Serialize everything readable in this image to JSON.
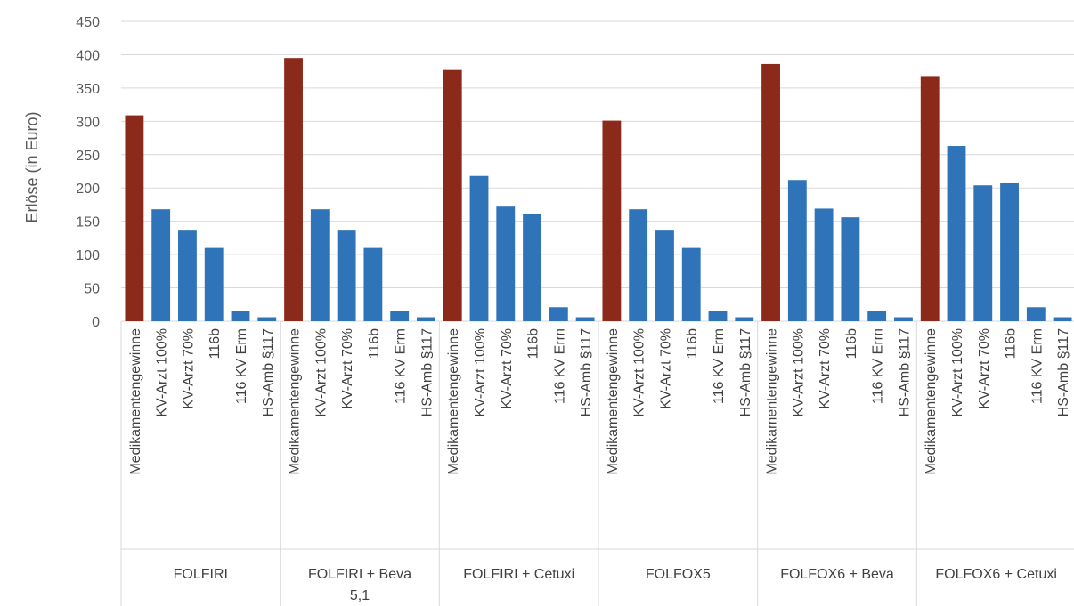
{
  "chart_data": {
    "type": "bar",
    "title": "",
    "xlabel": "",
    "ylabel": "Erlöse (in Euro)",
    "ylim": [
      0,
      450
    ],
    "yticks": [
      0,
      50,
      100,
      150,
      200,
      250,
      300,
      350,
      400,
      450
    ],
    "grid": true,
    "legend": "none",
    "colors": {
      "highlight": "#8B2A1A",
      "default": "#2F73B8"
    },
    "groups": [
      {
        "name": "FOLFIRI",
        "name_lines": [
          "FOLFIRI"
        ],
        "bars": [
          {
            "label": "Medikamentengewinne",
            "value": 309,
            "highlight": true
          },
          {
            "label": "KV-Arzt 100%",
            "value": 168
          },
          {
            "label": "KV-Arzt 70%",
            "value": 136
          },
          {
            "label": "116b",
            "value": 110
          },
          {
            "label": "116 KV Erm",
            "value": 15
          },
          {
            "label": "HS-Amb §117",
            "value": 6
          }
        ]
      },
      {
        "name": "FOLFIRI + Beva 5,1",
        "name_lines": [
          "FOLFIRI + Beva",
          "5,1"
        ],
        "bars": [
          {
            "label": "Medikamentengewinne",
            "value": 395,
            "highlight": true
          },
          {
            "label": "KV-Arzt 100%",
            "value": 168
          },
          {
            "label": "KV-Arzt 70%",
            "value": 136
          },
          {
            "label": "116b",
            "value": 110
          },
          {
            "label": "116 KV Erm",
            "value": 15
          },
          {
            "label": "HS-Amb §117",
            "value": 6
          }
        ]
      },
      {
        "name": "FOLFIRI + Cetuxi",
        "name_lines": [
          "FOLFIRI + Cetuxi"
        ],
        "bars": [
          {
            "label": "Medikamentengewinne",
            "value": 377,
            "highlight": true
          },
          {
            "label": "KV-Arzt 100%",
            "value": 218
          },
          {
            "label": "KV-Arzt 70%",
            "value": 172
          },
          {
            "label": "116b",
            "value": 161
          },
          {
            "label": "116 KV Erm",
            "value": 21
          },
          {
            "label": "HS-Amb §117",
            "value": 6
          }
        ]
      },
      {
        "name": "FOLFOX5",
        "name_lines": [
          "FOLFOX5"
        ],
        "bars": [
          {
            "label": "Medikamentengewinne",
            "value": 301,
            "highlight": true
          },
          {
            "label": "KV-Arzt 100%",
            "value": 168
          },
          {
            "label": "KV-Arzt 70%",
            "value": 136
          },
          {
            "label": "116b",
            "value": 110
          },
          {
            "label": "116 KV Erm",
            "value": 15
          },
          {
            "label": "HS-Amb §117",
            "value": 6
          }
        ]
      },
      {
        "name": "FOLFOX6 + Beva",
        "name_lines": [
          "FOLFOX6 + Beva"
        ],
        "bars": [
          {
            "label": "Medikamentengewinne",
            "value": 386,
            "highlight": true
          },
          {
            "label": "KV-Arzt 100%",
            "value": 212
          },
          {
            "label": "KV-Arzt 70%",
            "value": 169
          },
          {
            "label": "116b",
            "value": 156
          },
          {
            "label": "116 KV Erm",
            "value": 15
          },
          {
            "label": "HS-Amb §117",
            "value": 6
          }
        ]
      },
      {
        "name": "FOLFOX6 + Cetuxi",
        "name_lines": [
          "FOLFOX6 + Cetuxi"
        ],
        "bars": [
          {
            "label": "Medikamentengewinne",
            "value": 368,
            "highlight": true
          },
          {
            "label": "KV-Arzt 100%",
            "value": 263
          },
          {
            "label": "KV-Arzt 70%",
            "value": 204
          },
          {
            "label": "116b",
            "value": 207
          },
          {
            "label": "116 KV Erm",
            "value": 21
          },
          {
            "label": "HS-Amb §117",
            "value": 6
          }
        ]
      }
    ]
  }
}
